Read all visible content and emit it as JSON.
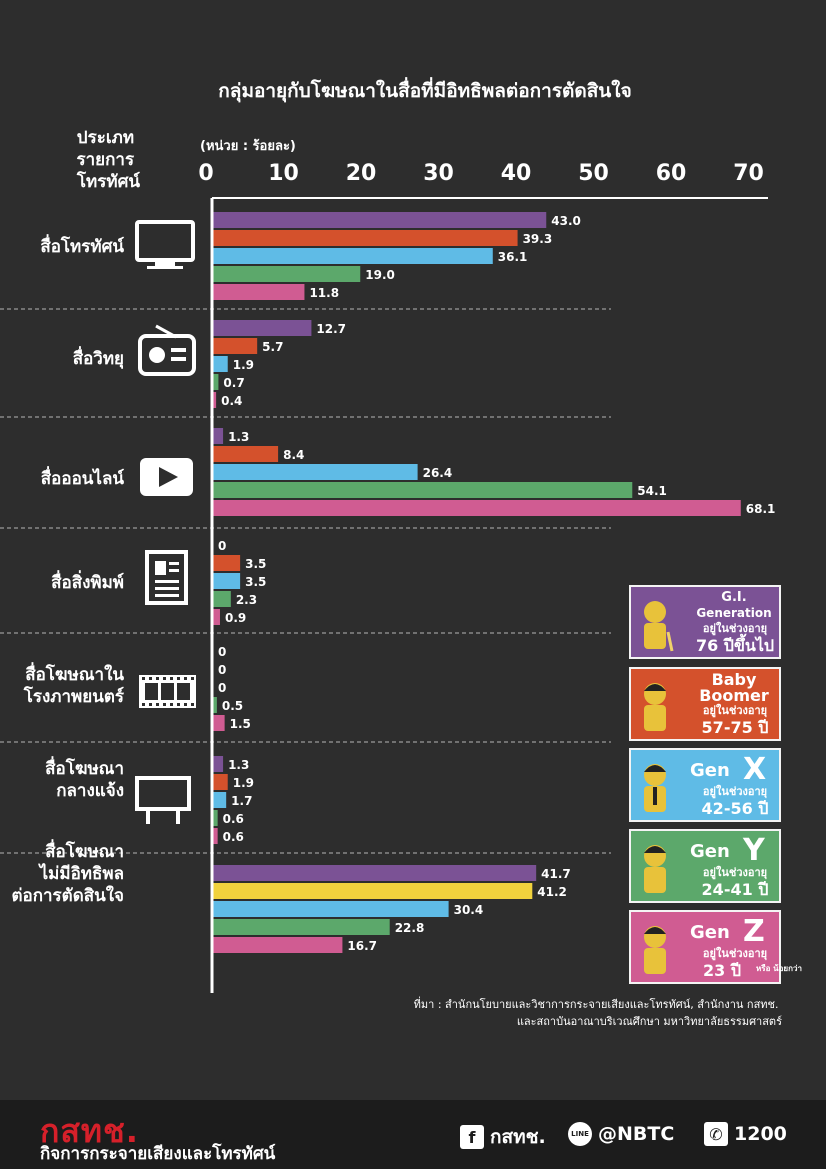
{
  "title": "กลุ่มอายุกับโฆษณาในสื่อที่มีอิทธิพลต่อการตัดสินใจ",
  "category_header": [
    "ประเภท",
    "รายการ",
    "โทรทัศน์"
  ],
  "unit_label": "(หน่วย : ร้อยละ)",
  "colors": {
    "gi": "#7b5295",
    "boomer": "#d4512c",
    "genx": "#5fbbe6",
    "geny": "#5ca86b",
    "genz": "#d05c92",
    "highlight": "#f1d23d"
  },
  "legend": [
    {
      "key": "gi",
      "title": "G.I.",
      "subtitle": "Generation",
      "age_caption": "อยู่ในช่วงอายุ",
      "age": "76 ปีขึ้นไป",
      "note": "",
      "icon": "elder-figure-icon"
    },
    {
      "key": "boomer",
      "title": "Baby",
      "subtitle": "Boomer",
      "age_caption": "อยู่ในช่วงอายุ",
      "age": "57-75 ปี",
      "note": "",
      "icon": "boomer-figure-icon"
    },
    {
      "key": "genx",
      "title": "Gen",
      "subtitle": "X",
      "age_caption": "อยู่ในช่วงอายุ",
      "age": "42-56 ปี",
      "note": "",
      "icon": "genx-figure-icon"
    },
    {
      "key": "geny",
      "title": "Gen",
      "subtitle": "Y",
      "age_caption": "อยู่ในช่วงอายุ",
      "age": "24-41 ปี",
      "note": "",
      "icon": "geny-figure-icon"
    },
    {
      "key": "genz",
      "title": "Gen",
      "subtitle": "Z",
      "age_caption": "อยู่ในช่วงอายุ",
      "age": "23 ปี",
      "note": "หรือ น้อยกว่า",
      "icon": "genz-figure-icon"
    }
  ],
  "source": [
    "ที่มา : สำนักนโยบายและวิชาการกระจายเสียงและโทรทัศน์, สำนักงาน กสทช.",
    "และสถาบันอาณาบริเวณศึกษา มหาวิทยาลัยธรรมศาสตร์"
  ],
  "footer": {
    "brand": "กสทช.",
    "brand_sub": "กิจการกระจายเสียงและโทรทัศน์",
    "facebook": "กสทช.",
    "line": "@NBTC",
    "phone": "1200"
  },
  "chart_data": {
    "type": "bar",
    "orientation": "horizontal",
    "title": "กลุ่มอายุกับโฆษณาในสื่อที่มีอิทธิพลต่อการตัดสินใจ",
    "unit": "(หน่วย : ร้อยละ)",
    "xlim": [
      0,
      70
    ],
    "ticks": [
      0,
      10,
      20,
      30,
      40,
      50,
      60,
      70
    ],
    "series": [
      "G.I. Generation",
      "Baby Boomer",
      "Gen X",
      "Gen Y",
      "Gen Z"
    ],
    "groups": [
      {
        "label": [
          "สื่อโทรทัศน์"
        ],
        "icon": "tv-icon",
        "values": [
          43.0,
          39.3,
          36.1,
          19.0,
          11.8
        ],
        "labels": [
          "43.0",
          "39.3",
          "36.1",
          "19.0",
          "11.8"
        ]
      },
      {
        "label": [
          "สื่อวิทยุ"
        ],
        "icon": "radio-icon",
        "values": [
          12.7,
          5.7,
          1.9,
          0.7,
          0.4
        ],
        "labels": [
          "12.7",
          "5.7",
          "1.9",
          "0.7",
          "0.4"
        ]
      },
      {
        "label": [
          "สื่อออนไลน์"
        ],
        "icon": "play-icon",
        "values": [
          1.3,
          8.4,
          26.4,
          54.1,
          68.1
        ],
        "labels": [
          "1.3",
          "8.4",
          "26.4",
          "54.1",
          "68.1"
        ]
      },
      {
        "label": [
          "สื่อสิ่งพิมพ์"
        ],
        "icon": "newspaper-icon",
        "values": [
          0,
          3.5,
          3.5,
          2.3,
          0.9
        ],
        "labels": [
          "0",
          "3.5",
          "3.5",
          "2.3",
          "0.9"
        ]
      },
      {
        "label": [
          "สื่อโฆษณาใน",
          "โรงภาพยนตร์"
        ],
        "icon": "film-icon",
        "values": [
          0,
          0,
          0,
          0.5,
          1.5
        ],
        "labels": [
          "0",
          "0",
          "0",
          "0.5",
          "1.5"
        ]
      },
      {
        "label": [
          "สื่อโฆษณา",
          "กลางแจ้ง"
        ],
        "icon": "billboard-icon",
        "values": [
          1.3,
          1.9,
          1.7,
          0.6,
          0.6
        ],
        "labels": [
          "1.3",
          "1.9",
          "1.7",
          "0.6",
          "0.6"
        ]
      },
      {
        "label": [
          "สื่อโฆษณา",
          "ไม่มีอิทธิพล",
          "ต่อการตัดสินใจ"
        ],
        "icon": "",
        "values": [
          41.7,
          41.2,
          30.4,
          22.8,
          16.7
        ],
        "labels": [
          "41.7",
          "41.2",
          "30.4",
          "22.8",
          "16.7"
        ],
        "highlight_index": 1
      }
    ]
  }
}
